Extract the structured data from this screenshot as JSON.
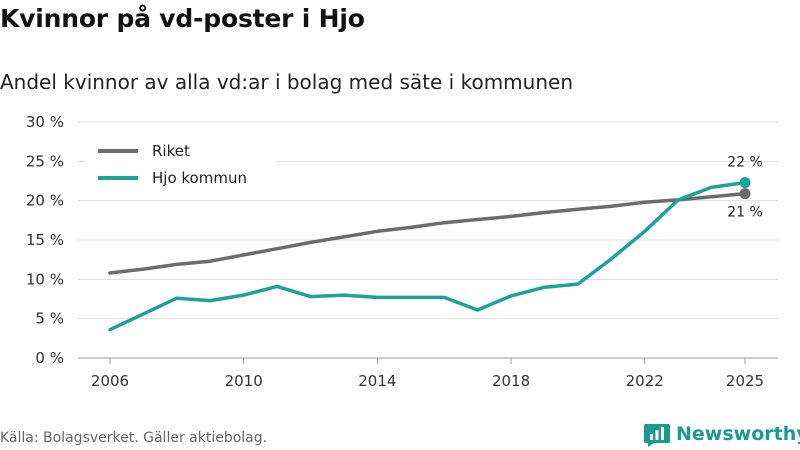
{
  "title": "Kvinnor på vd-poster i Hjo",
  "subtitle": "Andel kvinnor av alla vd:ar i bolag med säte i kommunen",
  "source": "Källa: Bolagsverket. Gäller aktiebolag.",
  "brand": "Newsworthy",
  "colors": {
    "riket": "#6d6b6e",
    "hjo": "#1aa396",
    "grid": "#dddddd",
    "brand": "#1a9b8f"
  },
  "chart_data": {
    "type": "line",
    "title": "Kvinnor på vd-poster i Hjo",
    "xlabel": "",
    "ylabel": "",
    "ylim": [
      0,
      30
    ],
    "xlim": [
      2006,
      2025
    ],
    "y_ticks": [
      0,
      5,
      10,
      15,
      20,
      25,
      30
    ],
    "y_tick_labels": [
      "0 %",
      "5 %",
      "10 %",
      "15 %",
      "20 %",
      "25 %",
      "30 %"
    ],
    "x_ticks": [
      2006,
      2010,
      2014,
      2018,
      2022,
      2025
    ],
    "x_tick_labels": [
      "2006",
      "2010",
      "2014",
      "2018",
      "2022",
      "2025"
    ],
    "legend_position": "top-left",
    "series": [
      {
        "name": "Riket",
        "color": "#6d6b6e",
        "x": [
          2006,
          2007,
          2008,
          2009,
          2010,
          2011,
          2012,
          2013,
          2014,
          2015,
          2016,
          2017,
          2018,
          2019,
          2020,
          2021,
          2022,
          2023,
          2024,
          2025
        ],
        "values": [
          10.8,
          11.3,
          11.9,
          12.3,
          13.1,
          13.9,
          14.7,
          15.4,
          16.1,
          16.6,
          17.2,
          17.6,
          18.0,
          18.5,
          18.9,
          19.3,
          19.8,
          20.1,
          20.5,
          20.9
        ],
        "end_label": "21 %"
      },
      {
        "name": "Hjo kommun",
        "color": "#1aa396",
        "x": [
          2006,
          2007,
          2008,
          2009,
          2010,
          2011,
          2012,
          2013,
          2014,
          2015,
          2016,
          2017,
          2018,
          2019,
          2020,
          2021,
          2022,
          2023,
          2024,
          2025
        ],
        "values": [
          3.6,
          5.6,
          7.6,
          7.3,
          8.0,
          9.1,
          7.8,
          8.0,
          7.7,
          7.7,
          7.7,
          6.1,
          7.9,
          9.0,
          9.4,
          12.6,
          16.1,
          20.1,
          21.7,
          22.3
        ],
        "end_label": "22 %"
      }
    ]
  }
}
